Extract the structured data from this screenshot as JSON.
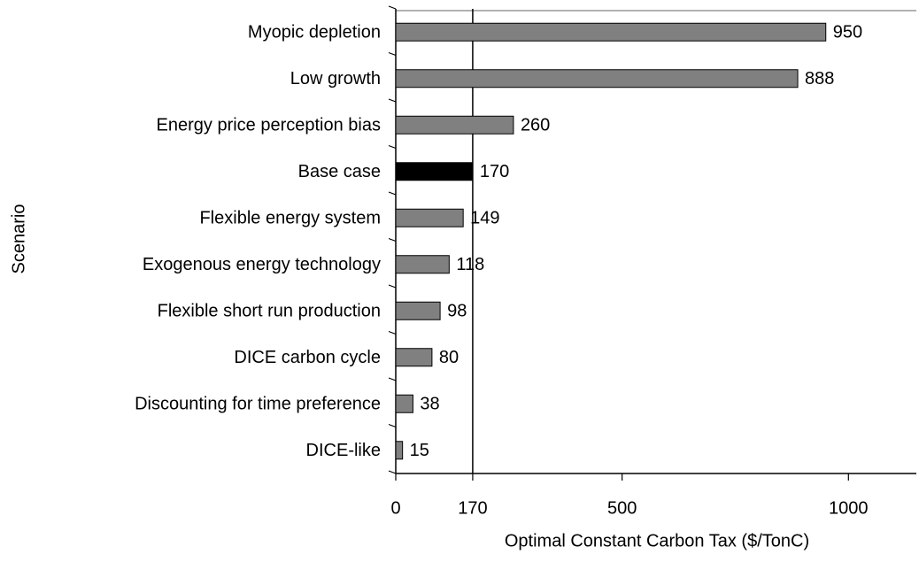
{
  "chart_data": {
    "type": "barh",
    "xlabel": "Optimal Constant Carbon Tax ($/TonC)",
    "ylabel": "Scenario",
    "categories": [
      "Myopic depletion",
      "Low growth",
      "Energy price perception bias",
      "Base case",
      "Flexible energy system",
      "Exogenous energy technology",
      "Flexible short run production",
      "DICE carbon cycle",
      "Discounting for time preference",
      "DICE-like"
    ],
    "values": [
      950,
      888,
      260,
      170,
      149,
      118,
      98,
      80,
      38,
      15
    ],
    "colors": [
      "#808080",
      "#808080",
      "#808080",
      "#000000",
      "#808080",
      "#808080",
      "#808080",
      "#808080",
      "#808080",
      "#808080"
    ],
    "xlim": [
      0,
      1150
    ],
    "xticks": [
      0,
      170,
      500,
      1000
    ],
    "reference_line": 170
  }
}
